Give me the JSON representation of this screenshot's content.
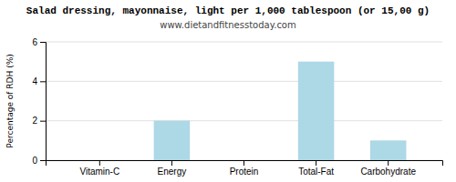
{
  "chart_data": {
    "type": "bar",
    "title": "Salad dressing, mayonnaise, light per 1,000 tablespoon (or 15,00 g)",
    "subtitle": "www.dietandfitnesstoday.com",
    "categories": [
      "Vitamin-C",
      "Energy",
      "Protein",
      "Total-Fat",
      "Carbohydrate"
    ],
    "values": [
      0,
      2,
      0,
      5,
      1
    ],
    "color": "#add8e6",
    "ylabel": "Percentage of RDH (%)",
    "ylim": [
      0,
      6
    ],
    "yticks": [
      0,
      2,
      4,
      6
    ],
    "grid": true
  }
}
